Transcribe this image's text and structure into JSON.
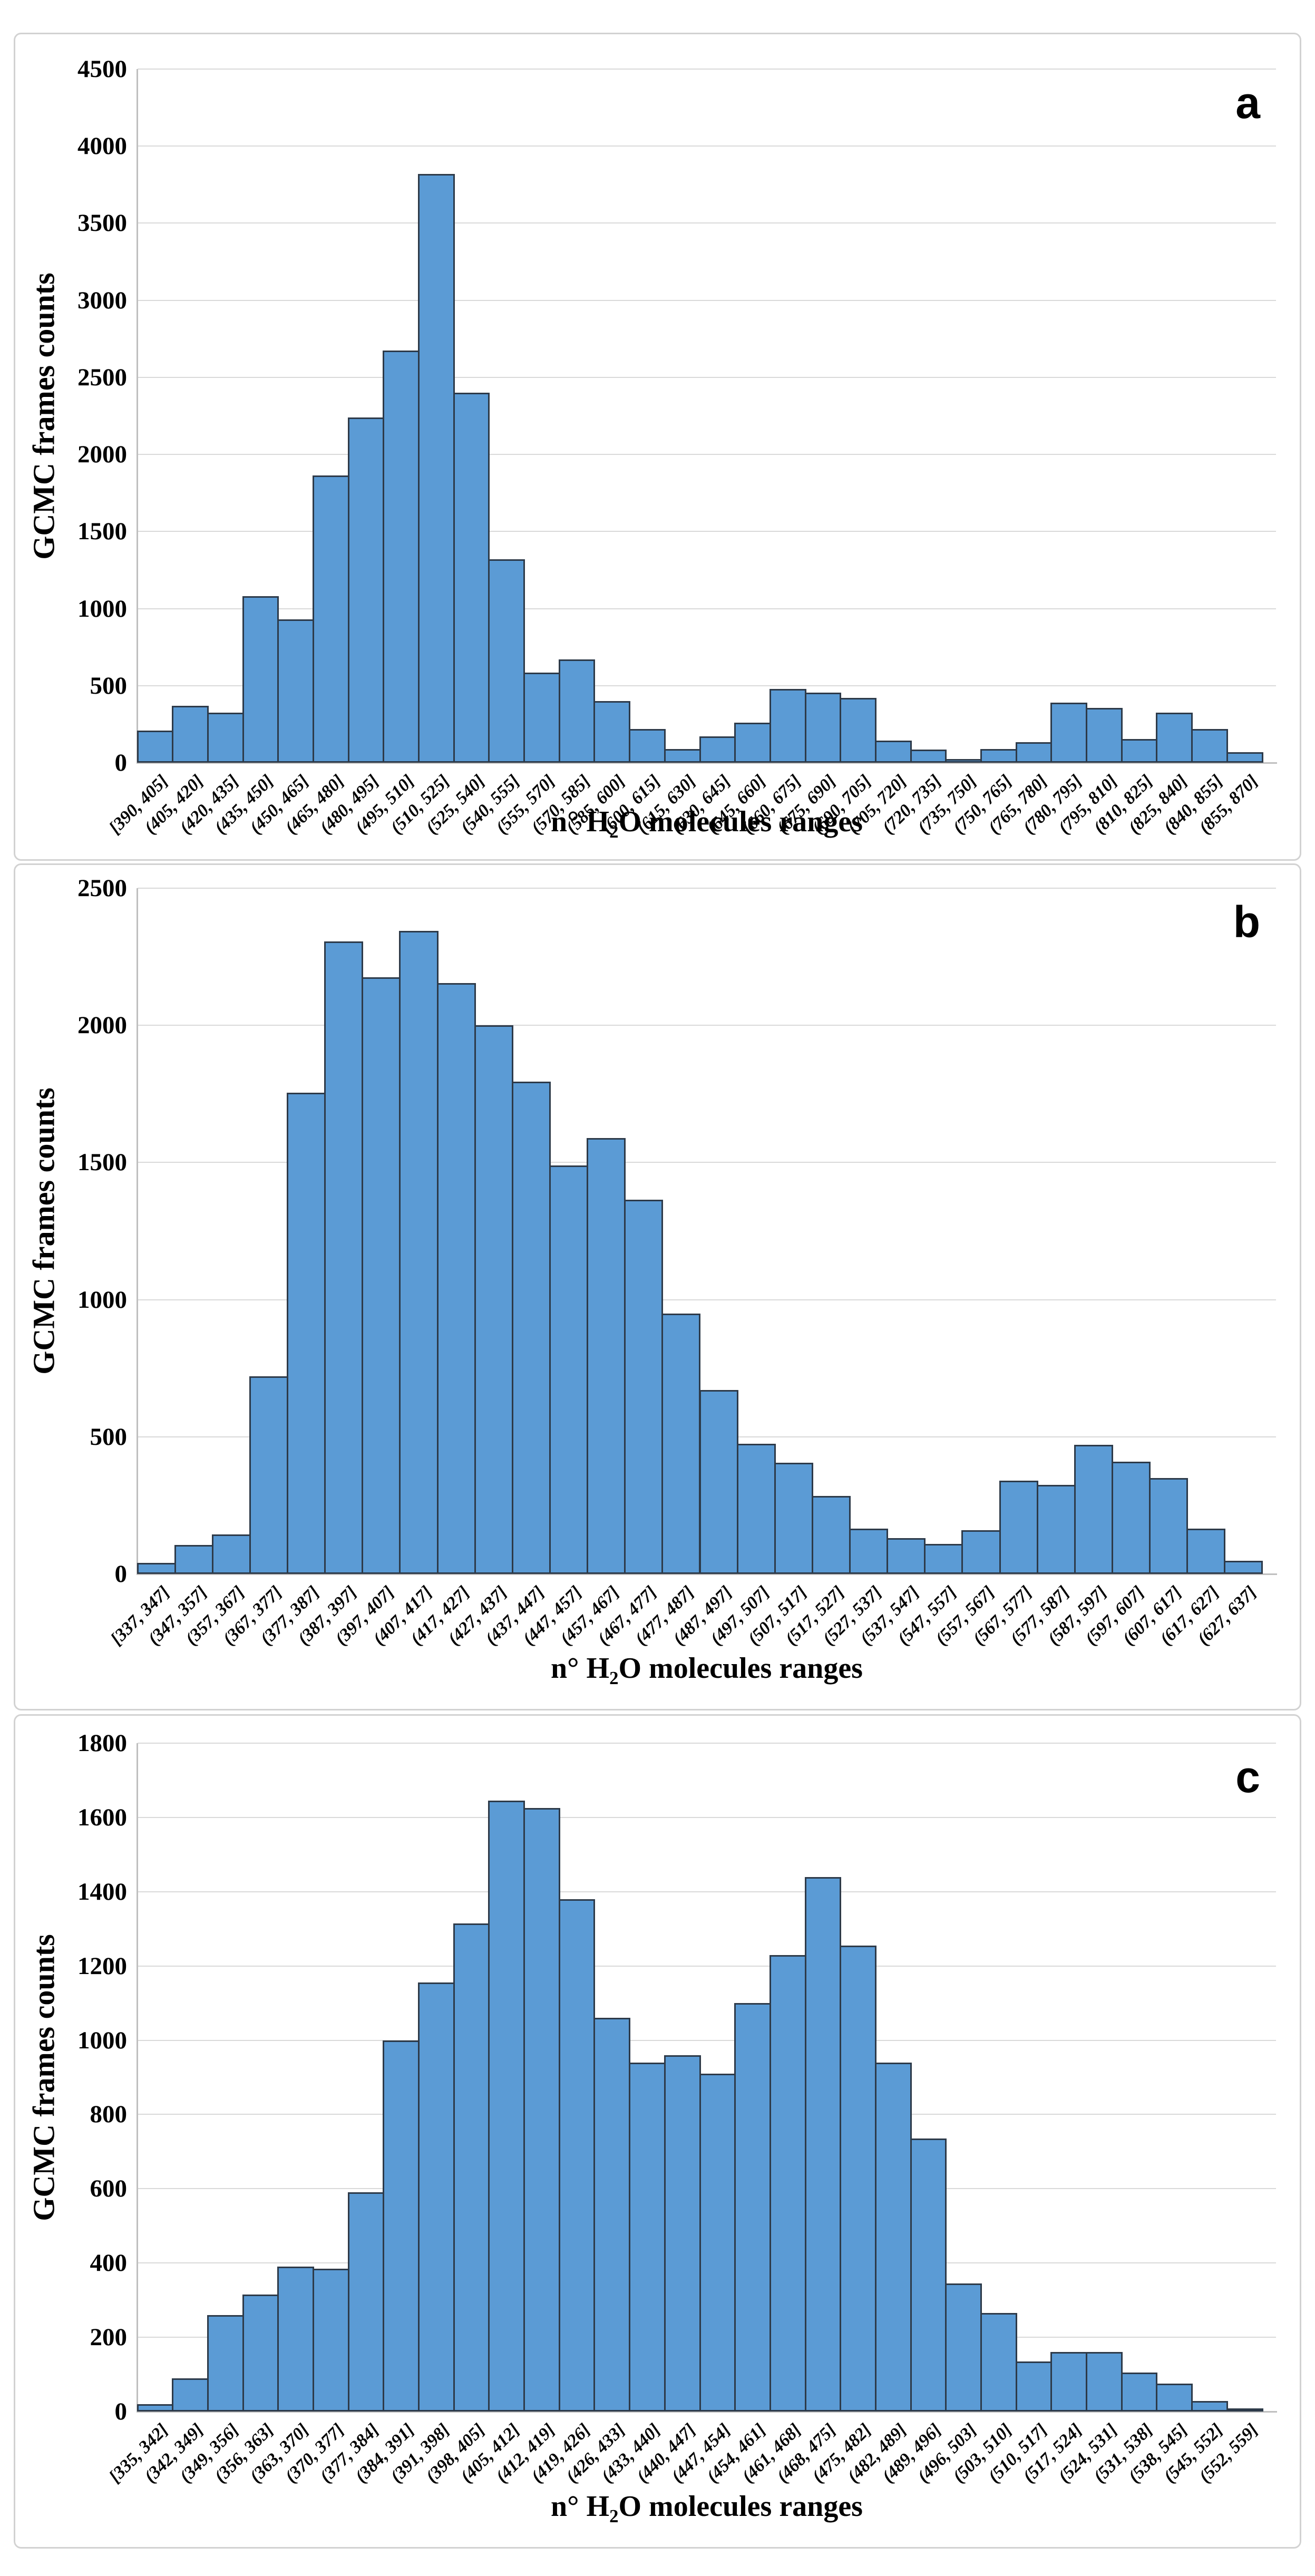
{
  "figure": {
    "background": "#ffffff",
    "colors": {
      "bar_fill": "#5b9bd5",
      "bar_border": "#2d3a49",
      "gridline": "#d9d9d9",
      "axis_line": "#bfbfbf",
      "panel_border": "#d2d2d2",
      "text": "#000000"
    }
  },
  "chart_data": [
    {
      "type": "bar",
      "panel_label": "a",
      "title": "",
      "xlabel": "n° H2O molecules ranges",
      "xlabel_prefix": "n° H",
      "xlabel_sub": "2",
      "xlabel_suffix": "O molecules ranges",
      "ylabel": "GCMC frames counts",
      "ylim": [
        0,
        4500
      ],
      "ytick_step": 500,
      "ytick_labels": [
        "0",
        "500",
        "1000",
        "1500",
        "2000",
        "2500",
        "3000",
        "3500",
        "4000",
        "4500"
      ],
      "grid": true,
      "legend": "none",
      "categories": [
        "[390, 405]",
        "(405, 420]",
        "(420, 435]",
        "(435, 450]",
        "(450, 465]",
        "(465, 480]",
        "(480, 495]",
        "(495, 510]",
        "(510, 525]",
        "(525, 540]",
        "(540, 555]",
        "(555, 570]",
        "(570, 585]",
        "(585, 600]",
        "(600, 615]",
        "(615, 630]",
        "(630, 645]",
        "(645, 660]",
        "(660, 675]",
        "(675, 690]",
        "(690, 705]",
        "(705, 720]",
        "(720, 735]",
        "(735, 750]",
        "(750, 765]",
        "(765, 780]",
        "(780, 795]",
        "(795, 810]",
        "(810, 825]",
        "(825, 840]",
        "(840, 855]",
        "(855, 870]"
      ],
      "values": [
        210,
        370,
        325,
        1080,
        930,
        1865,
        2240,
        2675,
        3820,
        2400,
        1320,
        585,
        670,
        400,
        220,
        90,
        170,
        260,
        480,
        455,
        420,
        145,
        85,
        25,
        90,
        135,
        390,
        355,
        155,
        325,
        220,
        70
      ]
    },
    {
      "type": "bar",
      "panel_label": "b",
      "title": "",
      "xlabel": "n° H2O molecules ranges",
      "xlabel_prefix": "n° H",
      "xlabel_sub": "2",
      "xlabel_suffix": "O molecules ranges",
      "ylabel": "GCMC frames counts",
      "ylim": [
        0,
        2500
      ],
      "ytick_step": 500,
      "ytick_labels": [
        "0",
        "500",
        "1000",
        "1500",
        "2000",
        "2500"
      ],
      "grid": true,
      "legend": "none",
      "categories": [
        "[337, 347]",
        "(347, 357]",
        "(357, 367]",
        "(367, 377]",
        "(377, 387]",
        "(387, 397]",
        "(397, 407]",
        "(407, 417]",
        "(417, 427]",
        "(427, 437]",
        "(437, 447]",
        "(447, 457]",
        "(457, 467]",
        "(467, 477]",
        "(477, 487]",
        "(487, 497]",
        "(497, 507]",
        "(507, 517]",
        "(517, 527]",
        "(527, 537]",
        "(537, 547]",
        "(547, 557]",
        "(557, 567]",
        "(567, 577]",
        "(577, 587]",
        "(587, 597]",
        "(597, 607]",
        "(607, 617]",
        "(617, 627]",
        "(627, 637]"
      ],
      "values": [
        40,
        105,
        145,
        720,
        1755,
        2305,
        2175,
        2345,
        2155,
        2000,
        1795,
        1490,
        1590,
        1365,
        950,
        670,
        475,
        405,
        285,
        165,
        130,
        110,
        160,
        340,
        325,
        470,
        410,
        350,
        165,
        48
      ]
    },
    {
      "type": "bar",
      "panel_label": "c",
      "title": "",
      "xlabel": "n° H2O molecules ranges",
      "xlabel_prefix": "n° H",
      "xlabel_sub": "2",
      "xlabel_suffix": "O molecules ranges",
      "ylabel": "GCMC frames counts",
      "ylim": [
        0,
        1800
      ],
      "ytick_step": 200,
      "ytick_labels": [
        "0",
        "200",
        "400",
        "600",
        "800",
        "1000",
        "1200",
        "1400",
        "1600",
        "1800"
      ],
      "grid": true,
      "legend": "none",
      "categories": [
        "[335, 342]",
        "(342, 349]",
        "(349, 356]",
        "(356, 363]",
        "(363, 370]",
        "(370, 377]",
        "(377, 384]",
        "(384, 391]",
        "(391, 398]",
        "(398, 405]",
        "(405, 412]",
        "(412, 419]",
        "(419, 426]",
        "(426, 433]",
        "(433, 440]",
        "(440, 447]",
        "(447, 454]",
        "(454, 461]",
        "(461, 468]",
        "(468, 475]",
        "(475, 482]",
        "(482, 489]",
        "(489, 496]",
        "(496, 503]",
        "(503, 510]",
        "(510, 517]",
        "(517, 524]",
        "(524, 531]",
        "(531, 538]",
        "(538, 545]",
        "(545, 552]",
        "(552, 559]"
      ],
      "values": [
        20,
        90,
        260,
        315,
        390,
        385,
        590,
        1000,
        1155,
        1315,
        1645,
        1625,
        1380,
        1060,
        940,
        960,
        910,
        1100,
        1230,
        1440,
        1255,
        940,
        735,
        345,
        265,
        135,
        160,
        160,
        105,
        75,
        28,
        5
      ]
    }
  ]
}
